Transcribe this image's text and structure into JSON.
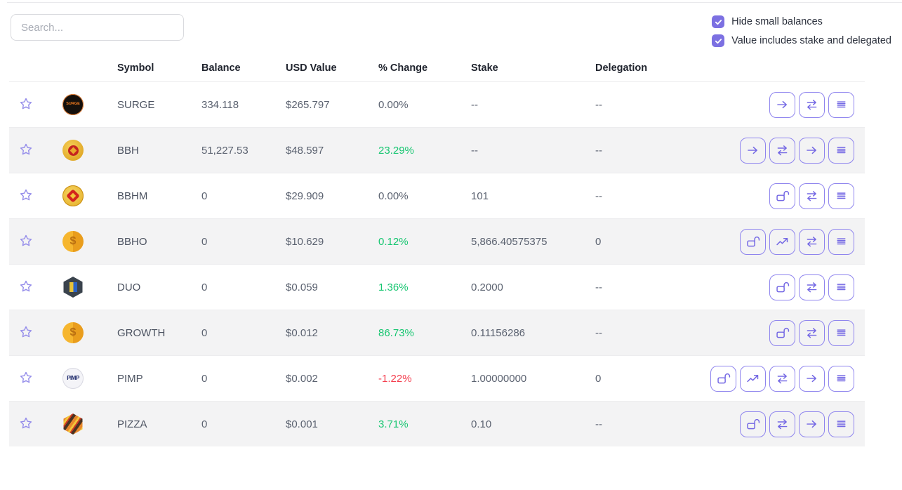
{
  "search": {
    "placeholder": "Search..."
  },
  "filters": [
    {
      "label": "Hide small balances",
      "checked": true
    },
    {
      "label": "Value includes stake and delegated",
      "checked": true
    }
  ],
  "colors": {
    "accent": "#7c70e2",
    "positive": "#17c671",
    "negative": "#f43f4f",
    "row_stripe": "#f3f3f4"
  },
  "table": {
    "columns": [
      "Symbol",
      "Balance",
      "USD Value",
      "% Change",
      "Stake",
      "Delegation"
    ],
    "rows": [
      {
        "symbol": "SURGE",
        "icon": "surge-token-icon",
        "icon_text": "SURGE",
        "balance": "334.118",
        "usd_value": "$265.797",
        "change": "0.00%",
        "change_dir": "neutral",
        "stake": "--",
        "delegation": "--",
        "actions": [
          "transfer",
          "swap",
          "history"
        ]
      },
      {
        "symbol": "BBH",
        "icon": "bbh-token-icon",
        "icon_text": "",
        "balance": "51,227.53",
        "usd_value": "$48.597",
        "change": "23.29%",
        "change_dir": "up",
        "stake": "--",
        "delegation": "--",
        "actions": [
          "transfer",
          "swap",
          "transfer",
          "history"
        ]
      },
      {
        "symbol": "BBHM",
        "icon": "bbhm-token-icon",
        "icon_text": "",
        "balance": "0",
        "usd_value": "$29.909",
        "change": "0.00%",
        "change_dir": "neutral",
        "stake": "101",
        "delegation": "--",
        "actions": [
          "unlock",
          "swap",
          "history"
        ]
      },
      {
        "symbol": "BBHO",
        "icon": "gold-dollar-token-icon",
        "icon_text": "$",
        "balance": "0",
        "usd_value": "$10.629",
        "change": "0.12%",
        "change_dir": "up",
        "stake": "5,866.40575375",
        "delegation": "0",
        "actions": [
          "unlock",
          "chart",
          "swap",
          "history"
        ]
      },
      {
        "symbol": "DUO",
        "icon": "duo-token-icon",
        "icon_text": "",
        "balance": "0",
        "usd_value": "$0.059",
        "change": "1.36%",
        "change_dir": "up",
        "stake": "0.2000",
        "delegation": "--",
        "actions": [
          "unlock",
          "swap",
          "history"
        ]
      },
      {
        "symbol": "GROWTH",
        "icon": "gold-dollar-token-icon",
        "icon_text": "$",
        "balance": "0",
        "usd_value": "$0.012",
        "change": "86.73%",
        "change_dir": "up",
        "stake": "0.11156286",
        "delegation": "--",
        "actions": [
          "unlock",
          "swap",
          "history"
        ]
      },
      {
        "symbol": "PIMP",
        "icon": "pimp-token-icon",
        "icon_text": "PIMP",
        "balance": "0",
        "usd_value": "$0.002",
        "change": "-1.22%",
        "change_dir": "down",
        "stake": "1.00000000",
        "delegation": "0",
        "actions": [
          "unlock",
          "chart",
          "swap",
          "transfer",
          "history"
        ]
      },
      {
        "symbol": "PIZZA",
        "icon": "pizza-token-icon",
        "icon_text": "",
        "balance": "0",
        "usd_value": "$0.001",
        "change": "3.71%",
        "change_dir": "up",
        "stake": "0.10",
        "delegation": "--",
        "actions": [
          "unlock",
          "swap",
          "transfer",
          "history"
        ]
      }
    ]
  }
}
